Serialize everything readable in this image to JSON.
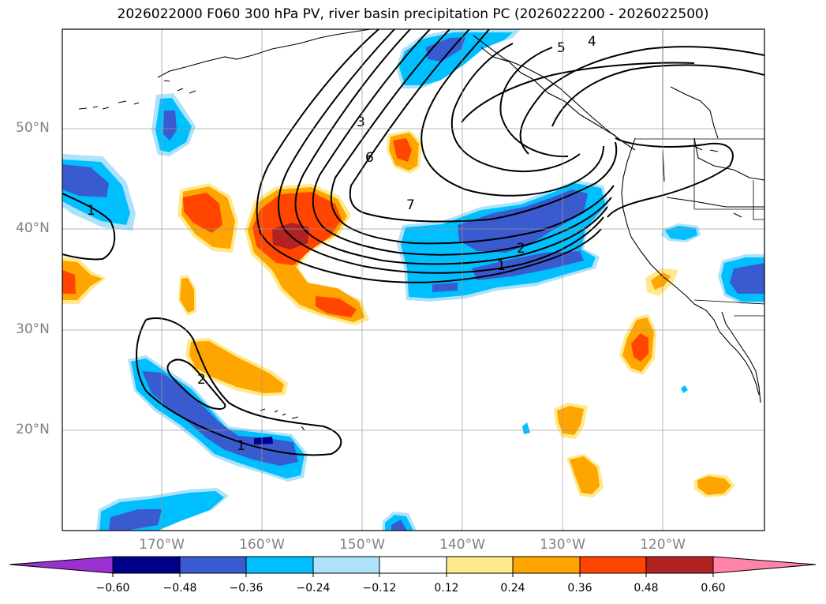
{
  "title": "2026022000 F060 300 hPa PV, river basin precipitation PC (2026022200 - 2026022500)",
  "map": {
    "lat_labels": [
      "50°N",
      "40°N",
      "30°N",
      "20°N"
    ],
    "lon_labels": [
      "170°W",
      "160°W",
      "150°W",
      "140°W",
      "130°W",
      "120°W"
    ],
    "contour_labels": [
      "1",
      "3",
      "6",
      "7",
      "5",
      "4",
      "2",
      "1",
      "2",
      "1"
    ]
  },
  "colorbar": {
    "ticks": [
      "−0.60",
      "−0.48",
      "−0.36",
      "−0.24",
      "−0.12",
      "0.12",
      "0.24",
      "0.36",
      "0.48",
      "0.60"
    ],
    "colors": [
      "#9b30d0",
      "#00008b",
      "#3a5bcf",
      "#00bfff",
      "#aee2fa",
      "#ffffff",
      "#ffe98a",
      "#ffa500",
      "#ff4500",
      "#b22222",
      "#ff85a8"
    ]
  },
  "colors": {
    "neg1": "#aee2fa",
    "neg2": "#00bfff",
    "neg3": "#3a5bcf",
    "neg4": "#00008b",
    "pos1": "#ffe98a",
    "pos2": "#ffa500",
    "pos3": "#ff4500",
    "pos4": "#b22222"
  }
}
